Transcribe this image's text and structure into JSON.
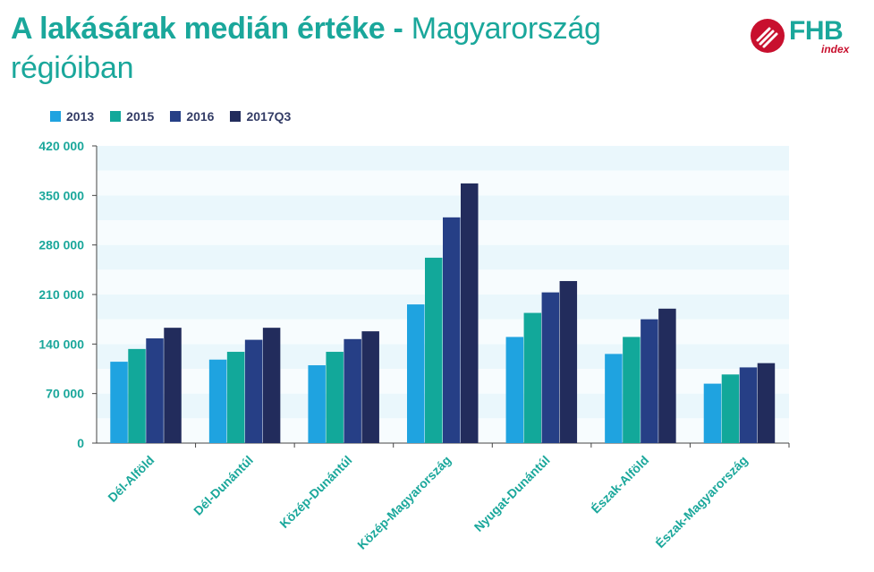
{
  "title": {
    "bold": "A lakásárak medián értéke -",
    "regular_1": "Magyarország",
    "regular_2": "régióiban"
  },
  "logo": {
    "text": "FHB",
    "sub": "index",
    "icon": "fhb-stripes-icon"
  },
  "colors": {
    "title": "#1aa79b",
    "s2013": "#1fa3e0",
    "s2015": "#12a89a",
    "s2016": "#263f86",
    "s2017": "#222c5c",
    "band_light": "#eaf7fc",
    "band_white": "#f7fcfe"
  },
  "chart_data": {
    "type": "bar",
    "categories": [
      "Dél-Alföld",
      "Dél-Dunántúl",
      "Közép-Dunántúl",
      "Közép-Magyarország",
      "Nyugat-Dunántúl",
      "Észak-Alföld",
      "Észak-Magyarország"
    ],
    "series": [
      {
        "name": "2013",
        "values": [
          115000,
          118000,
          110000,
          196000,
          150000,
          126000,
          84000
        ]
      },
      {
        "name": "2015",
        "values": [
          133000,
          129000,
          129000,
          262000,
          184000,
          150000,
          97000
        ]
      },
      {
        "name": "2016",
        "values": [
          148000,
          146000,
          147000,
          319000,
          213000,
          175000,
          107000
        ]
      },
      {
        "name": "2017Q3",
        "values": [
          163000,
          163000,
          158000,
          367000,
          229000,
          190000,
          113000
        ]
      }
    ],
    "yticks": [
      "0",
      "70  000",
      "140  000",
      "210  000",
      "280  000",
      "350  000",
      "420  000"
    ],
    "ylim": [
      0,
      420000
    ],
    "legend_position": "top-left"
  }
}
